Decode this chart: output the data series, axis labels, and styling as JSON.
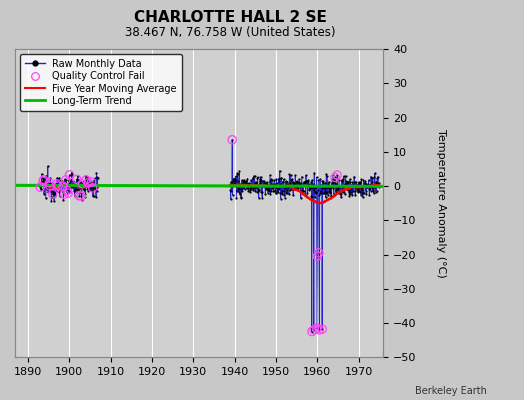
{
  "title": "CHARLOTTE HALL 2 SE",
  "subtitle": "38.467 N, 76.758 W (United States)",
  "credit": "Berkeley Earth",
  "ylabel": "Temperature Anomaly (°C)",
  "xlim": [
    1887,
    1976
  ],
  "ylim": [
    -50,
    40
  ],
  "yticks": [
    -50,
    -40,
    -30,
    -20,
    -10,
    0,
    10,
    20,
    30,
    40
  ],
  "xticks": [
    1890,
    1900,
    1910,
    1920,
    1930,
    1940,
    1950,
    1960,
    1970
  ],
  "bg_color": "#c8c8c8",
  "plot_bg_color": "#d0d0d0",
  "grid_color": "#ffffff",
  "raw_line_color": "#2222cc",
  "raw_dot_color": "#000000",
  "qc_fail_color": "#ff44ff",
  "moving_avg_color": "#ff0000",
  "trend_color": "#00bb00",
  "seed": 12345
}
